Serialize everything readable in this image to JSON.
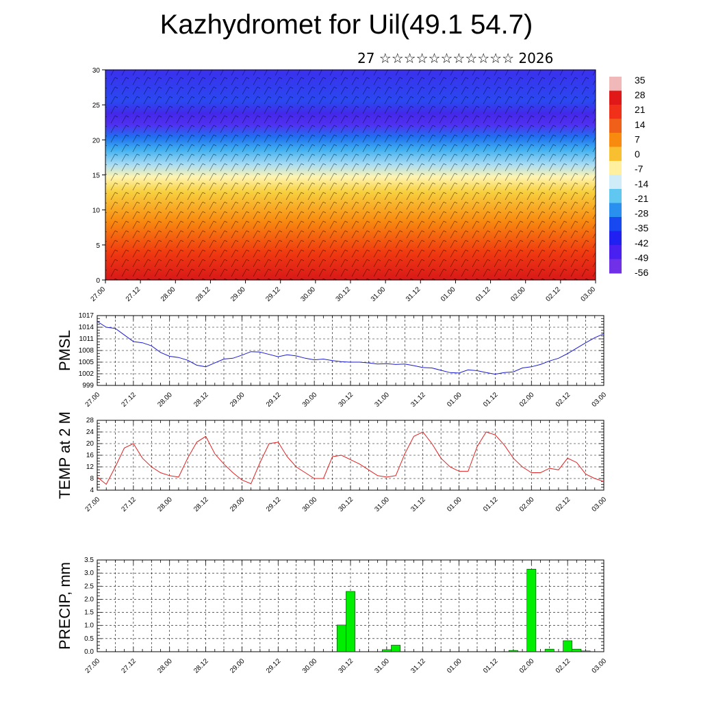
{
  "header": {
    "title": "Kazhydromet for Uil(49.1 54.7)",
    "subtitle": "27 ☆☆☆☆☆☆☆☆☆☆☆ 2026"
  },
  "chart_data": [
    {
      "type": "heatmap",
      "name": "cross-section",
      "title": "Kazhydromet for Uil(49.1 54.7)",
      "x_ticks": [
        "27.00",
        "27.12",
        "28.00",
        "28.12",
        "29.00",
        "29.12",
        "30.00",
        "30.12",
        "31.00",
        "31.12",
        "01.00",
        "01.12",
        "02.00",
        "02.12",
        "03.00"
      ],
      "y_ticks": [
        0,
        5,
        10,
        15,
        20,
        25,
        30
      ],
      "ylim": [
        0,
        30
      ],
      "colorbar": {
        "labels": [
          "35",
          "28",
          "21",
          "14",
          "7",
          "0",
          "-7",
          "-14",
          "-21",
          "-28",
          "-35",
          "-42",
          "-49",
          "-56"
        ],
        "colors": [
          "#f0b8b8",
          "#e01818",
          "#f03018",
          "#f06018",
          "#f88a10",
          "#f8c030",
          "#fff0a0",
          "#d0ecf8",
          "#60c8f0",
          "#2a90f0",
          "#1848f0",
          "#2020f0",
          "#4a20f0",
          "#7030e8"
        ]
      },
      "description_values": {
        "surface_temp_range": [
          21,
          35
        ],
        "upper_temp_range": [
          -56,
          -35
        ]
      }
    },
    {
      "type": "line",
      "name": "pmsl",
      "ylabel": "PMSL",
      "y_ticks": [
        "1017",
        "1014",
        "1011",
        "1008",
        "1005",
        "1002",
        "999"
      ],
      "ylim": [
        999,
        1017
      ],
      "color": "#1a1ad0",
      "x_ticks": [
        "27.00",
        "27.12",
        "28.00",
        "28.12",
        "29.00",
        "29.12",
        "30.00",
        "30.12",
        "31.00",
        "31.12",
        "01.00",
        "01.12",
        "02.00",
        "02.12",
        "03.00"
      ],
      "x": [
        0,
        0.25,
        0.5,
        0.75,
        1,
        1.25,
        1.5,
        1.75,
        2,
        2.25,
        2.5,
        2.75,
        3,
        3.25,
        3.5,
        3.75,
        4,
        4.25,
        4.5,
        4.75,
        5,
        5.25,
        5.5,
        5.75,
        6,
        6.25,
        6.5,
        6.75,
        7,
        7.25,
        7.5,
        7.75,
        8,
        8.25,
        8.5,
        8.75,
        9,
        9.25,
        9.5,
        9.75,
        10,
        10.25,
        10.5,
        10.75,
        11,
        11.25,
        11.5,
        11.75,
        12,
        12.25,
        12.5,
        12.75,
        13,
        13.25,
        13.5,
        13.75,
        14
      ],
      "values": [
        1015.5,
        1014.0,
        1013.7,
        1012.0,
        1010.3,
        1010.0,
        1009.2,
        1007.5,
        1006.5,
        1006.2,
        1005.5,
        1004.2,
        1003.8,
        1004.8,
        1005.8,
        1006.0,
        1006.8,
        1007.7,
        1007.6,
        1007.0,
        1006.4,
        1006.9,
        1006.6,
        1006.0,
        1005.6,
        1005.8,
        1005.4,
        1005.1,
        1005.0,
        1005.0,
        1004.8,
        1004.5,
        1004.6,
        1004.4,
        1004.5,
        1004.1,
        1003.6,
        1003.5,
        1002.9,
        1002.3,
        1002.2,
        1003.0,
        1002.8,
        1002.3,
        1001.9,
        1002.3,
        1002.5,
        1003.5,
        1003.8,
        1004.4,
        1005.3,
        1006.0,
        1007.2,
        1008.6,
        1010.0,
        1011.3,
        1012.3
      ]
    },
    {
      "type": "line",
      "name": "temp2m",
      "ylabel": "TEMP at 2 M",
      "y_ticks": [
        "28",
        "24",
        "20",
        "16",
        "12",
        "8",
        "4"
      ],
      "ylim": [
        4,
        28
      ],
      "color": "#e02020",
      "x_ticks": [
        "27.00",
        "27.12",
        "28.00",
        "28.12",
        "29.00",
        "29.12",
        "30.00",
        "30.12",
        "31.00",
        "31.12",
        "01.00",
        "01.12",
        "02.00",
        "02.12",
        "03.00"
      ],
      "x": [
        0,
        0.25,
        0.5,
        0.75,
        1,
        1.25,
        1.5,
        1.75,
        2,
        2.25,
        2.5,
        2.75,
        3,
        3.25,
        3.5,
        3.75,
        4,
        4.25,
        4.5,
        4.75,
        5,
        5.25,
        5.5,
        5.75,
        6,
        6.25,
        6.5,
        6.75,
        7,
        7.25,
        7.5,
        7.75,
        8,
        8.25,
        8.5,
        8.75,
        9,
        9.25,
        9.5,
        9.75,
        10,
        10.25,
        10.5,
        10.75,
        11,
        11.25,
        11.5,
        11.75,
        12,
        12.25,
        12.5,
        12.75,
        13,
        13.25,
        13.5,
        13.75,
        14
      ],
      "values": [
        8.5,
        6.0,
        12.0,
        18.5,
        20.0,
        15.0,
        12.0,
        10.0,
        9.0,
        8.5,
        15.0,
        20.5,
        22.5,
        16.5,
        13.0,
        10.0,
        7.5,
        6.2,
        13.5,
        20.0,
        20.5,
        15.5,
        12.0,
        10.0,
        8.0,
        8.0,
        15.5,
        16.0,
        14.5,
        13.0,
        11.0,
        9.0,
        8.5,
        9.0,
        16.5,
        22.5,
        24.0,
        20.0,
        15.0,
        12.0,
        10.5,
        10.5,
        19.0,
        24.0,
        23.0,
        19.5,
        15.0,
        12.0,
        10.0,
        10.0,
        11.5,
        11.0,
        15.0,
        13.5,
        9.5,
        8.0,
        7.0
      ]
    },
    {
      "type": "bar",
      "name": "precip",
      "ylabel": "PRECIP, mm",
      "y_ticks": [
        "3.5",
        "3.0",
        "2.5",
        "2.0",
        "1.5",
        "1.0",
        "0.5",
        "0.0"
      ],
      "ylim": [
        0,
        3.5
      ],
      "color": "#00ee00",
      "x_ticks": [
        "27.00",
        "27.12",
        "28.00",
        "28.12",
        "29.00",
        "29.12",
        "30.00",
        "30.12",
        "31.00",
        "31.12",
        "01.00",
        "01.12",
        "02.00",
        "02.12",
        "03.00"
      ],
      "x": [
        6.75,
        7.0,
        8.0,
        8.25,
        11.5,
        12.0,
        12.5,
        13.0,
        13.25,
        13.5
      ],
      "values": [
        1.02,
        2.3,
        0.08,
        0.25,
        0.05,
        3.15,
        0.1,
        0.42,
        0.1,
        0.03
      ]
    }
  ]
}
